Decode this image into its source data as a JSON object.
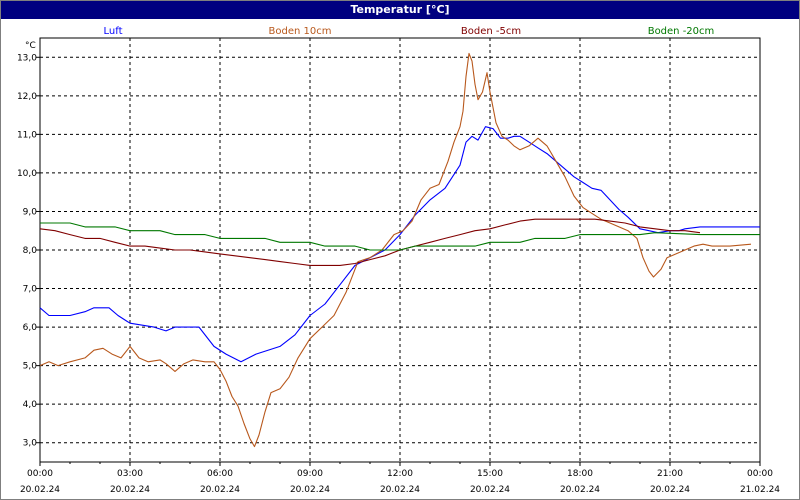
{
  "chart_data": {
    "type": "line",
    "title": "Temperatur [°C]",
    "y_unit": "°C",
    "ylim": [
      2.5,
      13.5
    ],
    "y_ticks": [
      "3,0",
      "4,0",
      "5,0",
      "6,0",
      "7,0",
      "8,0",
      "9,0",
      "10,0",
      "11,0",
      "12,0",
      "13,0"
    ],
    "x_ticks": [
      {
        "time": "00:00",
        "date": "20.02.24"
      },
      {
        "time": "03:00",
        "date": "20.02.24"
      },
      {
        "time": "06:00",
        "date": "20.02.24"
      },
      {
        "time": "09:00",
        "date": "20.02.24"
      },
      {
        "time": "12:00",
        "date": "20.02.24"
      },
      {
        "time": "15:00",
        "date": "20.02.24"
      },
      {
        "time": "18:00",
        "date": "20.02.24"
      },
      {
        "time": "21:00",
        "date": "20.02.24"
      },
      {
        "time": "00:00",
        "date": "21.02.24"
      }
    ],
    "grid": true,
    "legend_position": "top",
    "series": [
      {
        "name": "Luft",
        "color": "#0000ff",
        "points": [
          [
            0,
            6.5
          ],
          [
            0.3,
            6.3
          ],
          [
            1.0,
            6.3
          ],
          [
            1.5,
            6.4
          ],
          [
            1.8,
            6.5
          ],
          [
            2.3,
            6.5
          ],
          [
            2.6,
            6.3
          ],
          [
            3.0,
            6.1
          ],
          [
            3.8,
            6.0
          ],
          [
            4.2,
            5.9
          ],
          [
            4.5,
            6.0
          ],
          [
            5.3,
            6.0
          ],
          [
            5.8,
            5.5
          ],
          [
            6.2,
            5.3
          ],
          [
            6.7,
            5.1
          ],
          [
            7.2,
            5.3
          ],
          [
            8.0,
            5.5
          ],
          [
            8.5,
            5.8
          ],
          [
            9.0,
            6.3
          ],
          [
            9.5,
            6.6
          ],
          [
            10.0,
            7.1
          ],
          [
            10.5,
            7.6
          ],
          [
            11.0,
            7.8
          ],
          [
            11.5,
            8.0
          ],
          [
            12.0,
            8.4
          ],
          [
            12.5,
            8.9
          ],
          [
            13.0,
            9.3
          ],
          [
            13.5,
            9.6
          ],
          [
            14.0,
            10.2
          ],
          [
            14.2,
            10.8
          ],
          [
            14.4,
            10.95
          ],
          [
            14.6,
            10.85
          ],
          [
            14.85,
            11.2
          ],
          [
            15.1,
            11.15
          ],
          [
            15.35,
            10.9
          ],
          [
            15.6,
            10.9
          ],
          [
            15.8,
            10.95
          ],
          [
            16.0,
            10.95
          ],
          [
            16.3,
            10.8
          ],
          [
            16.6,
            10.65
          ],
          [
            16.9,
            10.5
          ],
          [
            17.2,
            10.3
          ],
          [
            17.5,
            10.1
          ],
          [
            17.8,
            9.9
          ],
          [
            18.1,
            9.75
          ],
          [
            18.4,
            9.6
          ],
          [
            18.7,
            9.55
          ],
          [
            19.0,
            9.3
          ],
          [
            19.3,
            9.05
          ],
          [
            19.6,
            8.85
          ],
          [
            20.0,
            8.55
          ],
          [
            20.3,
            8.5
          ],
          [
            20.6,
            8.45
          ],
          [
            21.0,
            8.5
          ],
          [
            21.3,
            8.5
          ],
          [
            21.5,
            8.55
          ],
          [
            22.0,
            8.6
          ],
          [
            24,
            8.6
          ]
        ]
      },
      {
        "name": "Boden 10cm",
        "color": "#b8581c",
        "points": [
          [
            0,
            5.0
          ],
          [
            0.3,
            5.1
          ],
          [
            0.6,
            5.0
          ],
          [
            1.0,
            5.1
          ],
          [
            1.5,
            5.2
          ],
          [
            1.8,
            5.4
          ],
          [
            2.1,
            5.45
          ],
          [
            2.4,
            5.3
          ],
          [
            2.7,
            5.2
          ],
          [
            3.0,
            5.5
          ],
          [
            3.3,
            5.2
          ],
          [
            3.6,
            5.1
          ],
          [
            4.0,
            5.15
          ],
          [
            4.2,
            5.05
          ],
          [
            4.5,
            4.85
          ],
          [
            4.8,
            5.05
          ],
          [
            5.1,
            5.15
          ],
          [
            5.5,
            5.1
          ],
          [
            5.8,
            5.1
          ],
          [
            6.0,
            4.9
          ],
          [
            6.2,
            4.6
          ],
          [
            6.4,
            4.2
          ],
          [
            6.6,
            3.95
          ],
          [
            6.8,
            3.5
          ],
          [
            7.0,
            3.1
          ],
          [
            7.15,
            2.9
          ],
          [
            7.3,
            3.2
          ],
          [
            7.5,
            3.8
          ],
          [
            7.7,
            4.3
          ],
          [
            8.0,
            4.4
          ],
          [
            8.3,
            4.7
          ],
          [
            8.6,
            5.2
          ],
          [
            9.0,
            5.7
          ],
          [
            9.4,
            6.0
          ],
          [
            9.8,
            6.3
          ],
          [
            10.2,
            6.9
          ],
          [
            10.6,
            7.7
          ],
          [
            11.0,
            7.8
          ],
          [
            11.4,
            8.0
          ],
          [
            11.8,
            8.4
          ],
          [
            12.1,
            8.5
          ],
          [
            12.4,
            8.75
          ],
          [
            12.7,
            9.3
          ],
          [
            13.0,
            9.6
          ],
          [
            13.3,
            9.7
          ],
          [
            13.6,
            10.3
          ],
          [
            13.8,
            10.8
          ],
          [
            14.0,
            11.2
          ],
          [
            14.1,
            11.6
          ],
          [
            14.2,
            12.5
          ],
          [
            14.3,
            13.1
          ],
          [
            14.4,
            12.9
          ],
          [
            14.5,
            12.3
          ],
          [
            14.6,
            11.9
          ],
          [
            14.75,
            12.1
          ],
          [
            14.9,
            12.6
          ],
          [
            15.0,
            12.1
          ],
          [
            15.2,
            11.3
          ],
          [
            15.4,
            10.95
          ],
          [
            15.6,
            10.85
          ],
          [
            15.8,
            10.7
          ],
          [
            16.0,
            10.6
          ],
          [
            16.3,
            10.7
          ],
          [
            16.6,
            10.9
          ],
          [
            16.9,
            10.7
          ],
          [
            17.2,
            10.3
          ],
          [
            17.5,
            9.9
          ],
          [
            17.8,
            9.4
          ],
          [
            18.1,
            9.1
          ],
          [
            18.4,
            8.95
          ],
          [
            18.7,
            8.8
          ],
          [
            19.0,
            8.7
          ],
          [
            19.3,
            8.6
          ],
          [
            19.6,
            8.5
          ],
          [
            19.9,
            8.3
          ],
          [
            20.1,
            7.8
          ],
          [
            20.3,
            7.45
          ],
          [
            20.45,
            7.3
          ],
          [
            20.7,
            7.5
          ],
          [
            20.9,
            7.8
          ],
          [
            21.2,
            7.9
          ],
          [
            21.5,
            8.0
          ],
          [
            21.8,
            8.1
          ],
          [
            22.1,
            8.15
          ],
          [
            22.4,
            8.1
          ],
          [
            23.0,
            8.1
          ],
          [
            23.7,
            8.15
          ]
        ]
      },
      {
        "name": "Boden -5cm",
        "color": "#800000",
        "points": [
          [
            0,
            8.55
          ],
          [
            0.5,
            8.5
          ],
          [
            1.0,
            8.4
          ],
          [
            1.5,
            8.3
          ],
          [
            2.0,
            8.3
          ],
          [
            2.5,
            8.2
          ],
          [
            3.0,
            8.1
          ],
          [
            3.5,
            8.1
          ],
          [
            4.0,
            8.05
          ],
          [
            4.5,
            8.0
          ],
          [
            5.0,
            8.0
          ],
          [
            5.5,
            7.95
          ],
          [
            6.0,
            7.9
          ],
          [
            6.5,
            7.85
          ],
          [
            7.0,
            7.8
          ],
          [
            7.5,
            7.75
          ],
          [
            8.0,
            7.7
          ],
          [
            8.5,
            7.65
          ],
          [
            9.0,
            7.6
          ],
          [
            9.5,
            7.6
          ],
          [
            10.0,
            7.6
          ],
          [
            10.5,
            7.65
          ],
          [
            11.0,
            7.75
          ],
          [
            11.5,
            7.85
          ],
          [
            12.0,
            8.0
          ],
          [
            12.5,
            8.1
          ],
          [
            13.0,
            8.2
          ],
          [
            13.5,
            8.3
          ],
          [
            14.0,
            8.4
          ],
          [
            14.5,
            8.5
          ],
          [
            15.0,
            8.55
          ],
          [
            15.5,
            8.65
          ],
          [
            16.0,
            8.75
          ],
          [
            16.5,
            8.8
          ],
          [
            17.0,
            8.8
          ],
          [
            17.5,
            8.8
          ],
          [
            18.0,
            8.8
          ],
          [
            18.5,
            8.8
          ],
          [
            19.0,
            8.75
          ],
          [
            19.5,
            8.7
          ],
          [
            20.0,
            8.6
          ],
          [
            20.5,
            8.55
          ],
          [
            21.0,
            8.5
          ],
          [
            21.5,
            8.5
          ],
          [
            22.0,
            8.45
          ]
        ]
      },
      {
        "name": "Boden -20cm",
        "color": "#007800",
        "points": [
          [
            0,
            8.7
          ],
          [
            1.0,
            8.7
          ],
          [
            1.5,
            8.6
          ],
          [
            2.5,
            8.6
          ],
          [
            3.0,
            8.5
          ],
          [
            4.0,
            8.5
          ],
          [
            4.5,
            8.4
          ],
          [
            5.5,
            8.4
          ],
          [
            6.0,
            8.3
          ],
          [
            7.5,
            8.3
          ],
          [
            8.0,
            8.2
          ],
          [
            9.0,
            8.2
          ],
          [
            9.5,
            8.1
          ],
          [
            10.5,
            8.1
          ],
          [
            11.0,
            8.0
          ],
          [
            12.0,
            8.0
          ],
          [
            12.5,
            8.1
          ],
          [
            14.5,
            8.1
          ],
          [
            15.0,
            8.2
          ],
          [
            16.0,
            8.2
          ],
          [
            16.5,
            8.3
          ],
          [
            17.5,
            8.3
          ],
          [
            18.0,
            8.4
          ],
          [
            20.0,
            8.4
          ],
          [
            20.5,
            8.45
          ],
          [
            22.0,
            8.4
          ],
          [
            24,
            8.4
          ]
        ]
      }
    ]
  }
}
